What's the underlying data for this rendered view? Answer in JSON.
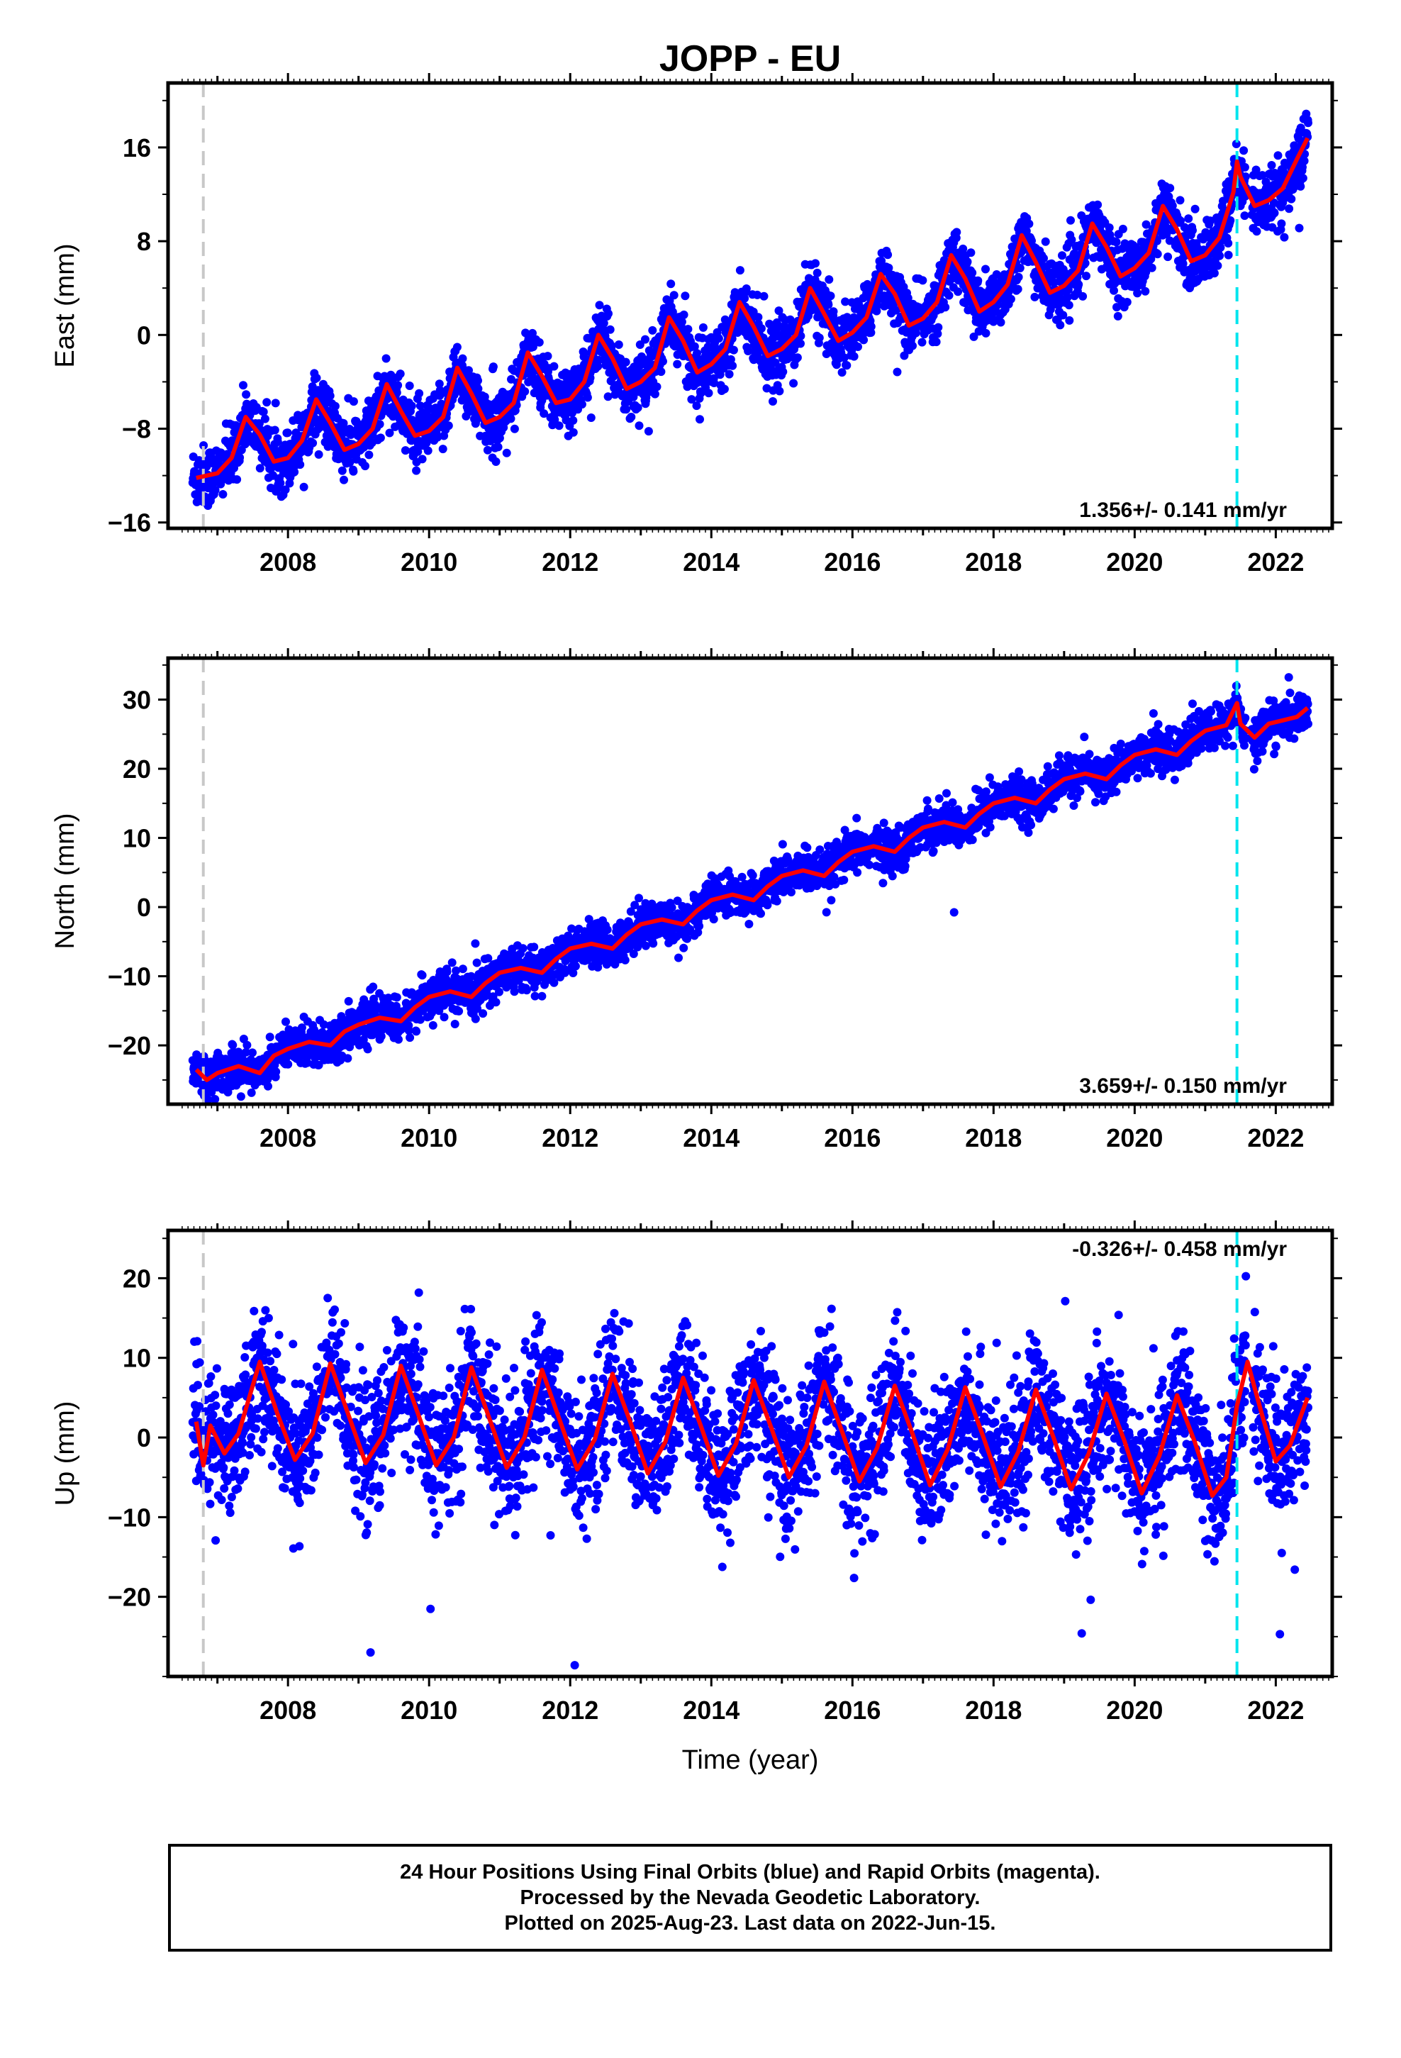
{
  "footer": {
    "line1": "24 Hour Positions Using Final Orbits (blue) and Rapid Orbits (magenta).",
    "line2": "Processed by the Nevada Geodetic Laboratory.",
    "line3": "Plotted on 2025-Aug-23. Last data on 2022-Jun-15."
  },
  "colors": {
    "points": "#0000ff",
    "model": "#ff0000",
    "equipment_change": "#c8c8c8",
    "offset": "#00e5ee",
    "frame": "#000000"
  },
  "chart_data": [
    {
      "type": "scatter",
      "title": "JOPP - EU",
      "ylabel": "East (mm)",
      "xlabel": "",
      "rate_label": "1.356+/- 0.141 mm/yr",
      "xlim": [
        2006.3,
        2022.8
      ],
      "ylim": [
        -16.5,
        21.5
      ],
      "yticks": [
        16,
        8,
        0,
        -8,
        -16
      ],
      "xticks": [
        2008,
        2010,
        2012,
        2014,
        2016,
        2018,
        2020,
        2022
      ],
      "grid": false,
      "vlines": [
        {
          "x": 2006.8,
          "color": "#c8c8c8",
          "style": "dashed"
        },
        {
          "x": 2021.45,
          "color": "#00e5ee",
          "style": "dashed"
        }
      ],
      "series": [
        {
          "values_x": [
            2006.7,
            2007.0,
            2007.2,
            2007.4,
            2007.6,
            2007.8,
            2008.0,
            2008.2,
            2008.4,
            2008.6,
            2008.8,
            2009.0,
            2009.2,
            2009.4,
            2009.6,
            2009.8,
            2010.0,
            2010.2,
            2010.4,
            2010.6,
            2010.8,
            2011.0,
            2011.2,
            2011.4,
            2011.6,
            2011.8,
            2012.0,
            2012.2,
            2012.4,
            2012.6,
            2012.8,
            2013.0,
            2013.2,
            2013.4,
            2013.6,
            2013.8,
            2014.0,
            2014.2,
            2014.4,
            2014.6,
            2014.8,
            2015.0,
            2015.2,
            2015.4,
            2015.6,
            2015.8,
            2016.0,
            2016.2,
            2016.4,
            2016.6,
            2016.8,
            2017.0,
            2017.2,
            2017.4,
            2017.6,
            2017.8,
            2018.0,
            2018.2,
            2018.4,
            2018.6,
            2018.8,
            2019.0,
            2019.2,
            2019.4,
            2019.6,
            2019.8,
            2020.0,
            2020.2,
            2020.4,
            2020.6,
            2020.8,
            2021.0,
            2021.2,
            2021.4,
            2021.45,
            2021.5,
            2021.7,
            2021.9,
            2022.1,
            2022.3,
            2022.45
          ],
          "values": [
            -12.2,
            -11.8,
            -10.5,
            -7.0,
            -8.5,
            -10.8,
            -10.5,
            -9.0,
            -5.5,
            -7.5,
            -9.8,
            -9.3,
            -8.0,
            -4.2,
            -6.5,
            -8.6,
            -8.2,
            -7.0,
            -2.8,
            -5.0,
            -7.5,
            -7.0,
            -5.8,
            -1.5,
            -3.5,
            -5.8,
            -5.5,
            -4.0,
            0.0,
            -2.0,
            -4.6,
            -4.0,
            -2.8,
            1.5,
            -0.5,
            -3.2,
            -2.5,
            -1.2,
            2.8,
            0.7,
            -1.8,
            -1.2,
            0.0,
            4.0,
            1.8,
            -0.5,
            0.2,
            1.5,
            5.2,
            3.5,
            0.8,
            1.4,
            2.8,
            6.8,
            4.8,
            2.0,
            2.8,
            4.3,
            8.5,
            6.2,
            3.6,
            4.2,
            5.5,
            9.5,
            7.5,
            5.0,
            5.7,
            7.0,
            11.0,
            9.0,
            6.3,
            6.8,
            8.3,
            12.2,
            14.8,
            13.5,
            11.0,
            11.5,
            12.5,
            15.0,
            16.8
          ],
          "name": ""
        }
      ]
    },
    {
      "type": "scatter",
      "title": "",
      "ylabel": "North (mm)",
      "xlabel": "",
      "rate_label": "3.659+/- 0.150 mm/yr",
      "xlim": [
        2006.3,
        2022.8
      ],
      "ylim": [
        -28.5,
        36.0
      ],
      "yticks": [
        30,
        20,
        10,
        0,
        -10,
        -20
      ],
      "xticks": [
        2008,
        2010,
        2012,
        2014,
        2016,
        2018,
        2020,
        2022
      ],
      "grid": false,
      "vlines": [
        {
          "x": 2006.8,
          "color": "#c8c8c8",
          "style": "dashed"
        },
        {
          "x": 2021.45,
          "color": "#00e5ee",
          "style": "dashed"
        }
      ],
      "series": [
        {
          "values_x": [
            2006.7,
            2006.85,
            2007.0,
            2007.3,
            2007.6,
            2007.8,
            2008.0,
            2008.3,
            2008.6,
            2008.8,
            2009.0,
            2009.3,
            2009.6,
            2009.8,
            2010.0,
            2010.3,
            2010.6,
            2010.8,
            2011.0,
            2011.3,
            2011.6,
            2011.8,
            2012.0,
            2012.3,
            2012.6,
            2012.8,
            2013.0,
            2013.3,
            2013.6,
            2013.8,
            2014.0,
            2014.3,
            2014.6,
            2014.8,
            2015.0,
            2015.3,
            2015.6,
            2015.8,
            2016.0,
            2016.3,
            2016.6,
            2016.8,
            2017.0,
            2017.3,
            2017.6,
            2017.8,
            2018.0,
            2018.3,
            2018.6,
            2018.8,
            2019.0,
            2019.3,
            2019.6,
            2019.8,
            2020.0,
            2020.3,
            2020.6,
            2020.8,
            2021.0,
            2021.3,
            2021.45,
            2021.5,
            2021.7,
            2021.9,
            2022.1,
            2022.3,
            2022.45
          ],
          "values": [
            -23.5,
            -25.0,
            -24.0,
            -23.0,
            -24.0,
            -21.5,
            -20.5,
            -19.5,
            -20.0,
            -18.0,
            -17.0,
            -16.0,
            -16.5,
            -14.5,
            -13.0,
            -12.2,
            -13.0,
            -11.0,
            -9.5,
            -8.8,
            -9.5,
            -7.5,
            -6.0,
            -5.3,
            -6.0,
            -4.0,
            -2.5,
            -1.8,
            -2.5,
            -0.5,
            1.0,
            1.8,
            1.0,
            3.0,
            4.5,
            5.3,
            4.5,
            6.5,
            8.0,
            8.8,
            8.0,
            10.0,
            11.5,
            12.3,
            11.5,
            13.5,
            15.0,
            15.8,
            15.0,
            17.0,
            18.5,
            19.3,
            18.5,
            20.5,
            22.0,
            22.8,
            22.0,
            24.0,
            25.5,
            26.3,
            29.5,
            26.5,
            24.5,
            26.5,
            27.0,
            27.5,
            28.8
          ],
          "name": ""
        }
      ]
    },
    {
      "type": "scatter",
      "title": "",
      "ylabel": "Up (mm)",
      "xlabel": "Time (year)",
      "rate_label": "-0.326+/- 0.458 mm/yr",
      "xlim": [
        2006.3,
        2022.8
      ],
      "ylim": [
        -30.0,
        26.0
      ],
      "yticks": [
        20,
        10,
        0,
        -10,
        -20
      ],
      "xticks": [
        2008,
        2010,
        2012,
        2014,
        2016,
        2018,
        2020,
        2022
      ],
      "grid": false,
      "vlines": [
        {
          "x": 2006.8,
          "color": "#c8c8c8",
          "style": "dashed"
        },
        {
          "x": 2021.45,
          "color": "#00e5ee",
          "style": "dashed"
        }
      ],
      "series": [
        {
          "values_x": [
            2006.7,
            2006.8,
            2006.9,
            2007.1,
            2007.3,
            2007.6,
            2007.85,
            2008.1,
            2008.35,
            2008.6,
            2008.85,
            2009.1,
            2009.35,
            2009.6,
            2009.85,
            2010.1,
            2010.35,
            2010.6,
            2010.85,
            2011.1,
            2011.35,
            2011.6,
            2011.85,
            2012.1,
            2012.35,
            2012.6,
            2012.85,
            2013.1,
            2013.35,
            2013.6,
            2013.85,
            2014.1,
            2014.35,
            2014.6,
            2014.85,
            2015.1,
            2015.35,
            2015.6,
            2015.85,
            2016.1,
            2016.35,
            2016.6,
            2016.85,
            2017.1,
            2017.35,
            2017.6,
            2017.85,
            2018.1,
            2018.35,
            2018.6,
            2018.85,
            2019.1,
            2019.35,
            2019.6,
            2019.85,
            2020.1,
            2020.35,
            2020.6,
            2020.85,
            2021.1,
            2021.3,
            2021.45,
            2021.6,
            2021.8,
            2022.0,
            2022.2,
            2022.45
          ],
          "values": [
            2.0,
            -3.5,
            1.5,
            -2.0,
            0.5,
            9.5,
            3.0,
            -2.8,
            0.5,
            9.3,
            3.0,
            -3.2,
            0.3,
            9.0,
            2.8,
            -3.5,
            0.0,
            8.8,
            2.5,
            -3.8,
            0.0,
            8.5,
            2.2,
            -4.0,
            -0.2,
            8.0,
            2.0,
            -4.5,
            -0.5,
            7.5,
            1.5,
            -4.8,
            -0.8,
            7.2,
            1.2,
            -5.0,
            -1.0,
            7.0,
            0.8,
            -5.5,
            -1.3,
            6.5,
            0.5,
            -6.0,
            -1.5,
            6.3,
            0.2,
            -6.2,
            -1.8,
            6.0,
            0.0,
            -6.5,
            -2.0,
            5.5,
            -0.3,
            -7.0,
            -2.3,
            5.3,
            -0.5,
            -7.3,
            -5.0,
            4.0,
            9.5,
            3.0,
            -3.0,
            -1.0,
            5.0
          ],
          "name": ""
        }
      ]
    }
  ]
}
